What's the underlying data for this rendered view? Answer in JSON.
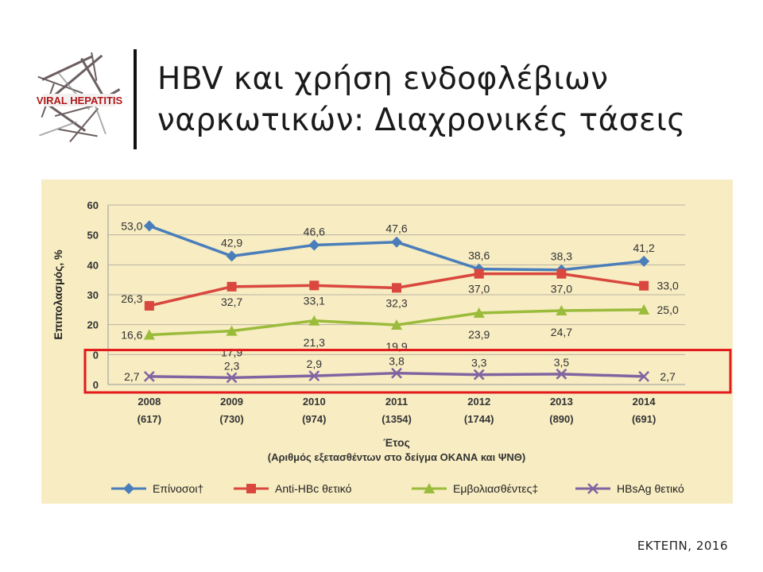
{
  "slide": {
    "title_line1": "HBV και χρήση ενδοφλέβιων",
    "title_line2": "ναρκωτικών: Διαχρονικές τάσεις",
    "source": "ΕΚΤΕΠΝ, 2016",
    "logo": {
      "icon": "viral-hepatitis-word-cloud-icon",
      "text": "VIRAL HEPATITIS"
    }
  },
  "chart_data": {
    "type": "line",
    "ylabel": "Επιπολασμός, %",
    "xlabel_line1": "Έτος",
    "xlabel_line2": "(Αριθμός εξετασθέντων στο δείγμα ΟΚΑΝΑ  και ΨΝΘ)",
    "ylim": [
      0,
      60
    ],
    "yticks": [
      "60",
      "50",
      "40",
      "30",
      "20",
      "0",
      "0"
    ],
    "grid": true,
    "legend_position": "bottom",
    "categories": [
      "2008",
      "2009",
      "2010",
      "2011",
      "2012",
      "2013",
      "2014"
    ],
    "sample_sizes": [
      "(617)",
      "(730)",
      "(974)",
      "(1354)",
      "(1744)",
      "(890)",
      "(691)"
    ],
    "highlight_box": {
      "color": "#e3191c",
      "range": [
        0,
        11
      ]
    },
    "series": [
      {
        "name": "Επίνοσοι†",
        "color": "#4a7ebb",
        "marker": "diamond",
        "values": [
          53.0,
          42.9,
          46.6,
          47.6,
          38.6,
          38.3,
          41.2
        ],
        "labels": [
          "53,0",
          "42,9",
          "46,6",
          "47,6",
          "38,6",
          "38,3",
          "41,2"
        ]
      },
      {
        "name": "Anti-HBc θετικό",
        "color": "#d9473e",
        "marker": "square",
        "values": [
          26.3,
          32.7,
          33.1,
          32.3,
          37.0,
          37.0,
          33.0
        ],
        "labels": [
          "26,3",
          "32,7",
          "33,1",
          "32,3",
          "37,0",
          "37,0",
          "33,0"
        ]
      },
      {
        "name": "Εμβολιασθέντες‡",
        "color": "#9bbb3b",
        "marker": "triangle",
        "values": [
          16.6,
          17.9,
          21.3,
          19.9,
          23.9,
          24.7,
          25.0
        ],
        "labels": [
          "16,6",
          "17,9",
          "21,3",
          "19,9",
          "23,9",
          "24,7",
          "25,0"
        ]
      },
      {
        "name": "HBsAg θετικό",
        "color": "#8064a2",
        "marker": "x",
        "values": [
          2.7,
          2.3,
          2.9,
          3.8,
          3.3,
          3.5,
          2.7
        ],
        "labels": [
          "2,7",
          "2,3",
          "2,9",
          "3,8",
          "3,3",
          "3,5",
          "2,7"
        ]
      }
    ]
  }
}
